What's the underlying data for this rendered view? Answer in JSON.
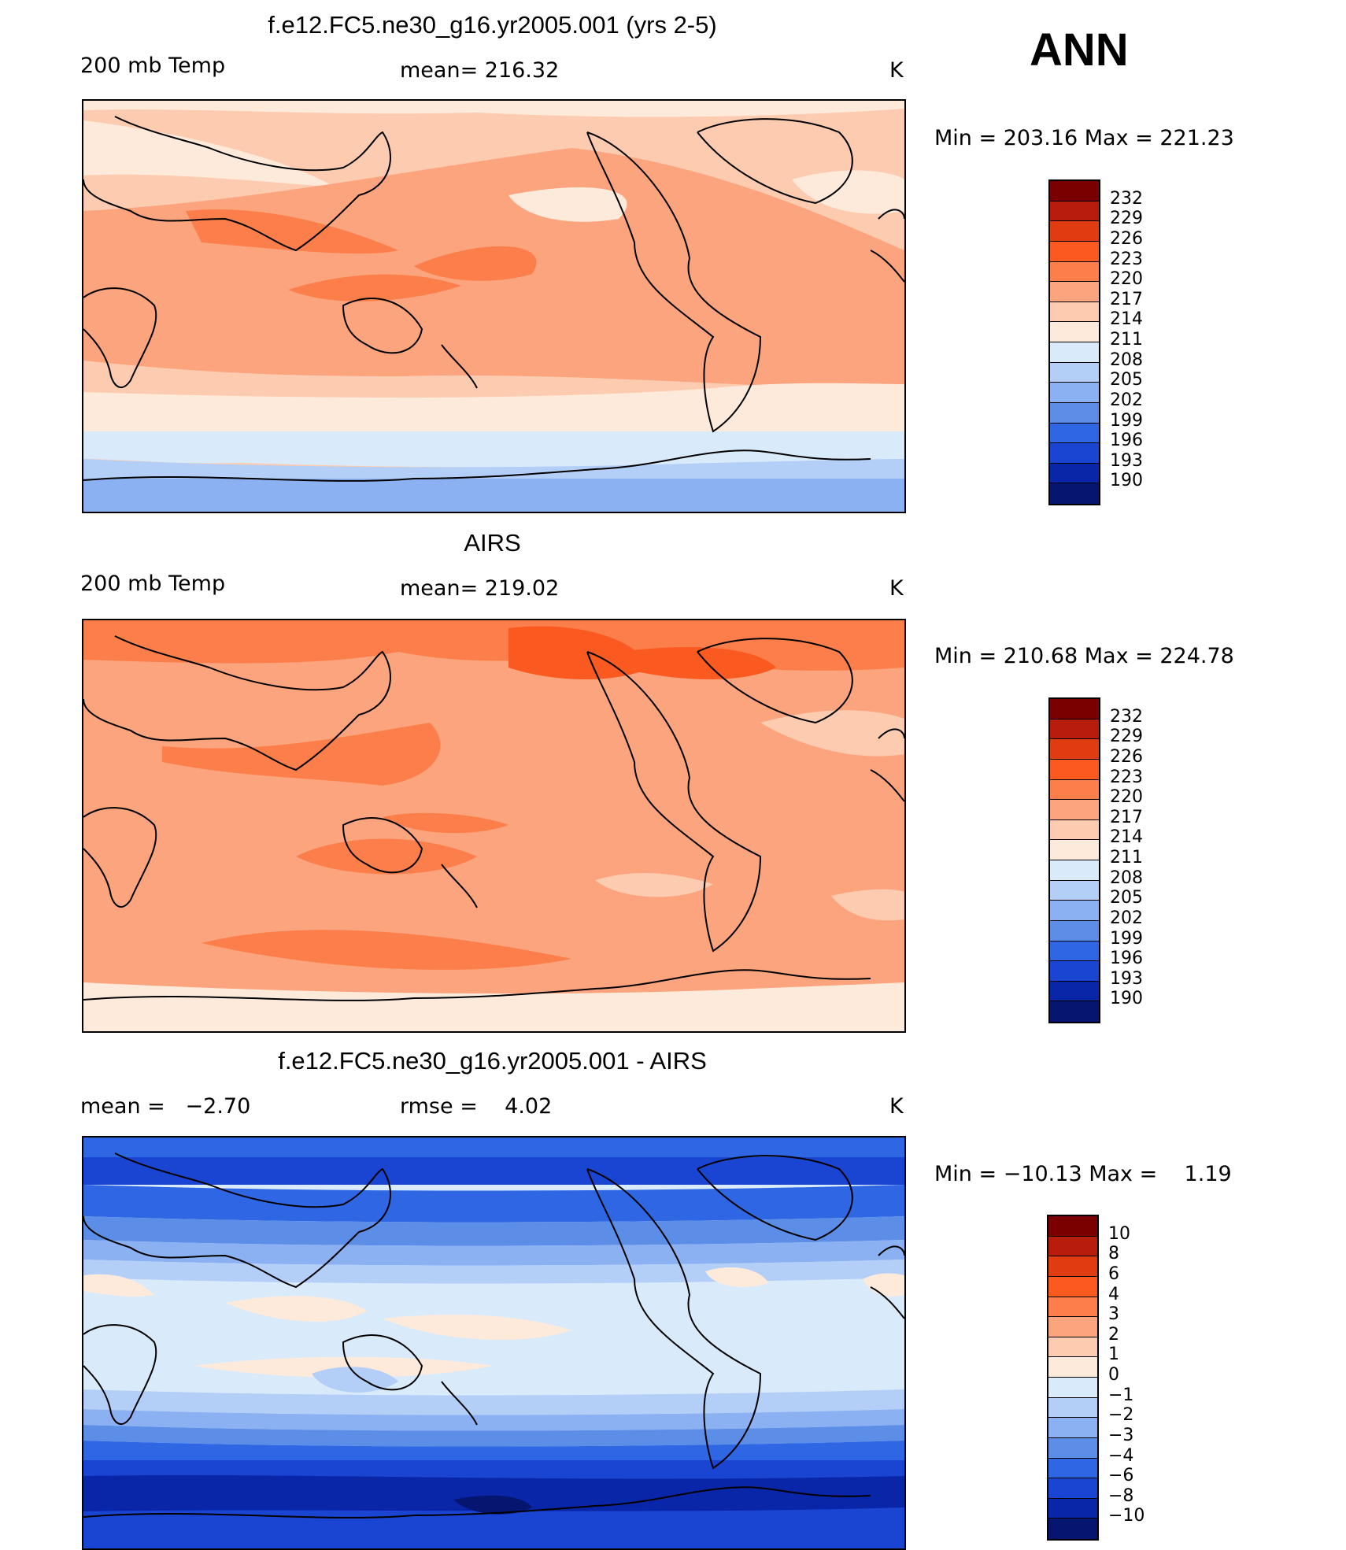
{
  "season": "ANN",
  "panels": [
    {
      "title": "f.e12.FC5.ne30_g16.yr2005.001 (yrs 2-5)",
      "left_label": "200 mb Temp",
      "center_label": "mean= 216.32",
      "units": "K",
      "min_max": "Min = 203.16 Max = 221.23",
      "colorbar_labels": [
        "232",
        "229",
        "226",
        "223",
        "220",
        "217",
        "214",
        "211",
        "208",
        "205",
        "202",
        "199",
        "196",
        "193",
        "190"
      ]
    },
    {
      "title": "AIRS",
      "left_label": "200 mb Temp",
      "center_label": "mean= 219.02",
      "units": "K",
      "min_max": "Min = 210.68 Max = 224.78",
      "colorbar_labels": [
        "232",
        "229",
        "226",
        "223",
        "220",
        "217",
        "214",
        "211",
        "208",
        "205",
        "202",
        "199",
        "196",
        "193",
        "190"
      ]
    },
    {
      "title": "f.e12.FC5.ne30_g16.yr2005.001 - AIRS",
      "left_label": "mean =   −2.70",
      "center_label": "rmse =    4.02",
      "units": "K",
      "min_max": "Min = −10.13 Max =    1.19",
      "colorbar_labels": [
        "10",
        "8",
        "6",
        "4",
        "3",
        "2",
        "1",
        "0",
        "−1",
        "−2",
        "−3",
        "−4",
        "−6",
        "−8",
        "−10"
      ]
    }
  ],
  "colors": {
    "abs_scale": [
      "#7a0000",
      "#b81c0c",
      "#df3c12",
      "#fa5a20",
      "#fc7f4b",
      "#fca47e",
      "#fdcbb0",
      "#feeadb",
      "#d9eafb",
      "#b3cff7",
      "#8cb1f2",
      "#5c8ee8",
      "#2e66e4",
      "#1a44d2",
      "#0a26a8",
      "#061670"
    ],
    "diff_scale": [
      "#7a0000",
      "#b81c0c",
      "#df3c12",
      "#fa5a20",
      "#fc7f4b",
      "#fca47e",
      "#fdcbb0",
      "#feeadb",
      "#d9eafb",
      "#b3cff7",
      "#8cb1f2",
      "#5c8ee8",
      "#2e66e4",
      "#1a44d2",
      "#0a26a8",
      "#061670"
    ]
  }
}
